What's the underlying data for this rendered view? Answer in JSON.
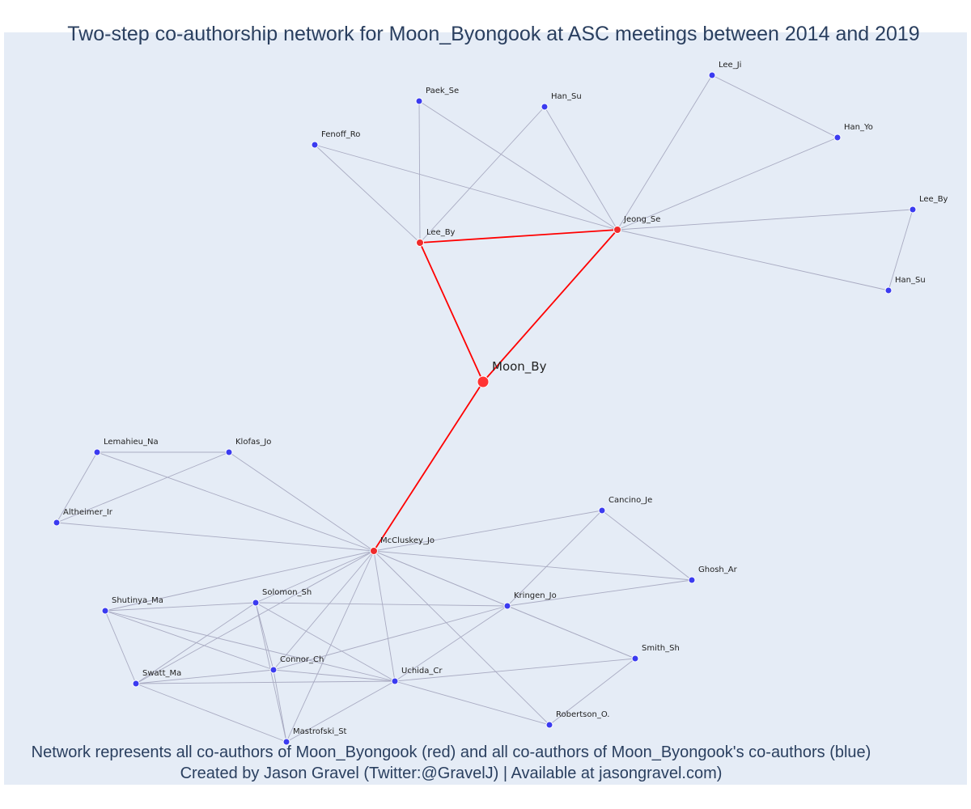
{
  "title": "Two-step co-authorship network for Moon_Byongook at ASC meetings between 2014 and 2019",
  "caption": {
    "line1": "Network represents all co-authors of Moon_Byongook (red) and all co-authors of Moon_Byongook's co-authors (blue)",
    "line2": "Created by Jason Gravel (Twitter:@GravelJ) | Available at jasongravel.com)"
  },
  "colors": {
    "focal": "#ff3333",
    "first_step": "#ef2b2b",
    "second_step": "#3b3bf0",
    "focal_edge": "#ff0000",
    "edge": "#a9abc2",
    "background": "#e5ecf6"
  },
  "nodes": [
    {
      "id": "moon",
      "label": "Moon_By",
      "group": "focal"
    },
    {
      "id": "leeby1",
      "label": "Lee_By",
      "group": "first"
    },
    {
      "id": "jeong",
      "label": "Jeong_Se",
      "group": "first"
    },
    {
      "id": "mccluskey",
      "label": "McCluskey_Jo",
      "group": "first"
    },
    {
      "id": "paek",
      "label": "Paek_Se",
      "group": "second"
    },
    {
      "id": "hansu1",
      "label": "Han_Su",
      "group": "second"
    },
    {
      "id": "fenoff",
      "label": "Fenoff_Ro",
      "group": "second"
    },
    {
      "id": "leeji",
      "label": "Lee_Ji",
      "group": "second"
    },
    {
      "id": "hanyo",
      "label": "Han_Yo",
      "group": "second"
    },
    {
      "id": "leeby2",
      "label": "Lee_By",
      "group": "second"
    },
    {
      "id": "hansu2",
      "label": "Han_Su",
      "group": "second"
    },
    {
      "id": "lemahieu",
      "label": "Lemahieu_Na",
      "group": "second"
    },
    {
      "id": "klofas",
      "label": "Klofas_Jo",
      "group": "second"
    },
    {
      "id": "altheimer",
      "label": "Altheimer_Ir",
      "group": "second"
    },
    {
      "id": "cancino",
      "label": "Cancino_Je",
      "group": "second"
    },
    {
      "id": "ghosh",
      "label": "Ghosh_Ar",
      "group": "second"
    },
    {
      "id": "shutinya",
      "label": "Shutinya_Ma",
      "group": "second"
    },
    {
      "id": "solomon",
      "label": "Solomon_Sh",
      "group": "second"
    },
    {
      "id": "kringen",
      "label": "Kringen_Jo",
      "group": "second"
    },
    {
      "id": "smith",
      "label": "Smith_Sh",
      "group": "second"
    },
    {
      "id": "connor",
      "label": "Connor_Ch",
      "group": "second"
    },
    {
      "id": "swatt",
      "label": "Swatt_Ma",
      "group": "second"
    },
    {
      "id": "uchida",
      "label": "Uchida_Cr",
      "group": "second"
    },
    {
      "id": "robertson",
      "label": "Robertson_O.",
      "group": "second"
    },
    {
      "id": "mastrofski",
      "label": "Mastrofski_St",
      "group": "second"
    }
  ],
  "edges": [
    [
      "moon",
      "leeby1",
      true
    ],
    [
      "moon",
      "jeong",
      true
    ],
    [
      "moon",
      "mccluskey",
      true
    ],
    [
      "leeby1",
      "jeong",
      true
    ],
    [
      "leeby1",
      "paek"
    ],
    [
      "leeby1",
      "hansu1"
    ],
    [
      "leeby1",
      "fenoff"
    ],
    [
      "jeong",
      "paek"
    ],
    [
      "jeong",
      "hansu1"
    ],
    [
      "jeong",
      "fenoff"
    ],
    [
      "jeong",
      "leeji"
    ],
    [
      "jeong",
      "hanyo"
    ],
    [
      "jeong",
      "leeby2"
    ],
    [
      "jeong",
      "hansu2"
    ],
    [
      "leeji",
      "hanyo"
    ],
    [
      "leeby2",
      "hansu2"
    ],
    [
      "lemahieu",
      "klofas"
    ],
    [
      "lemahieu",
      "altheimer"
    ],
    [
      "klofas",
      "altheimer"
    ],
    [
      "mccluskey",
      "lemahieu"
    ],
    [
      "mccluskey",
      "klofas"
    ],
    [
      "mccluskey",
      "altheimer"
    ],
    [
      "mccluskey",
      "cancino"
    ],
    [
      "mccluskey",
      "ghosh"
    ],
    [
      "mccluskey",
      "shutinya"
    ],
    [
      "mccluskey",
      "solomon"
    ],
    [
      "mccluskey",
      "kringen"
    ],
    [
      "mccluskey",
      "connor"
    ],
    [
      "mccluskey",
      "swatt"
    ],
    [
      "mccluskey",
      "uchida"
    ],
    [
      "mccluskey",
      "robertson"
    ],
    [
      "mccluskey",
      "mastrofski"
    ],
    [
      "mccluskey",
      "smith"
    ],
    [
      "cancino",
      "ghosh"
    ],
    [
      "cancino",
      "kringen"
    ],
    [
      "kringen",
      "ghosh"
    ],
    [
      "kringen",
      "smith"
    ],
    [
      "kringen",
      "uchida"
    ],
    [
      "kringen",
      "connor"
    ],
    [
      "solomon",
      "kringen"
    ],
    [
      "solomon",
      "uchida"
    ],
    [
      "solomon",
      "connor"
    ],
    [
      "solomon",
      "swatt"
    ],
    [
      "solomon",
      "mastrofski"
    ],
    [
      "shutinya",
      "solomon"
    ],
    [
      "shutinya",
      "connor"
    ],
    [
      "shutinya",
      "uchida"
    ],
    [
      "shutinya",
      "swatt"
    ],
    [
      "connor",
      "swatt"
    ],
    [
      "connor",
      "uchida"
    ],
    [
      "connor",
      "mastrofski"
    ],
    [
      "swatt",
      "uchida"
    ],
    [
      "swatt",
      "mastrofski"
    ],
    [
      "uchida",
      "mastrofski"
    ],
    [
      "uchida",
      "smith"
    ],
    [
      "uchida",
      "robertson"
    ],
    [
      "smith",
      "robertson"
    ]
  ]
}
